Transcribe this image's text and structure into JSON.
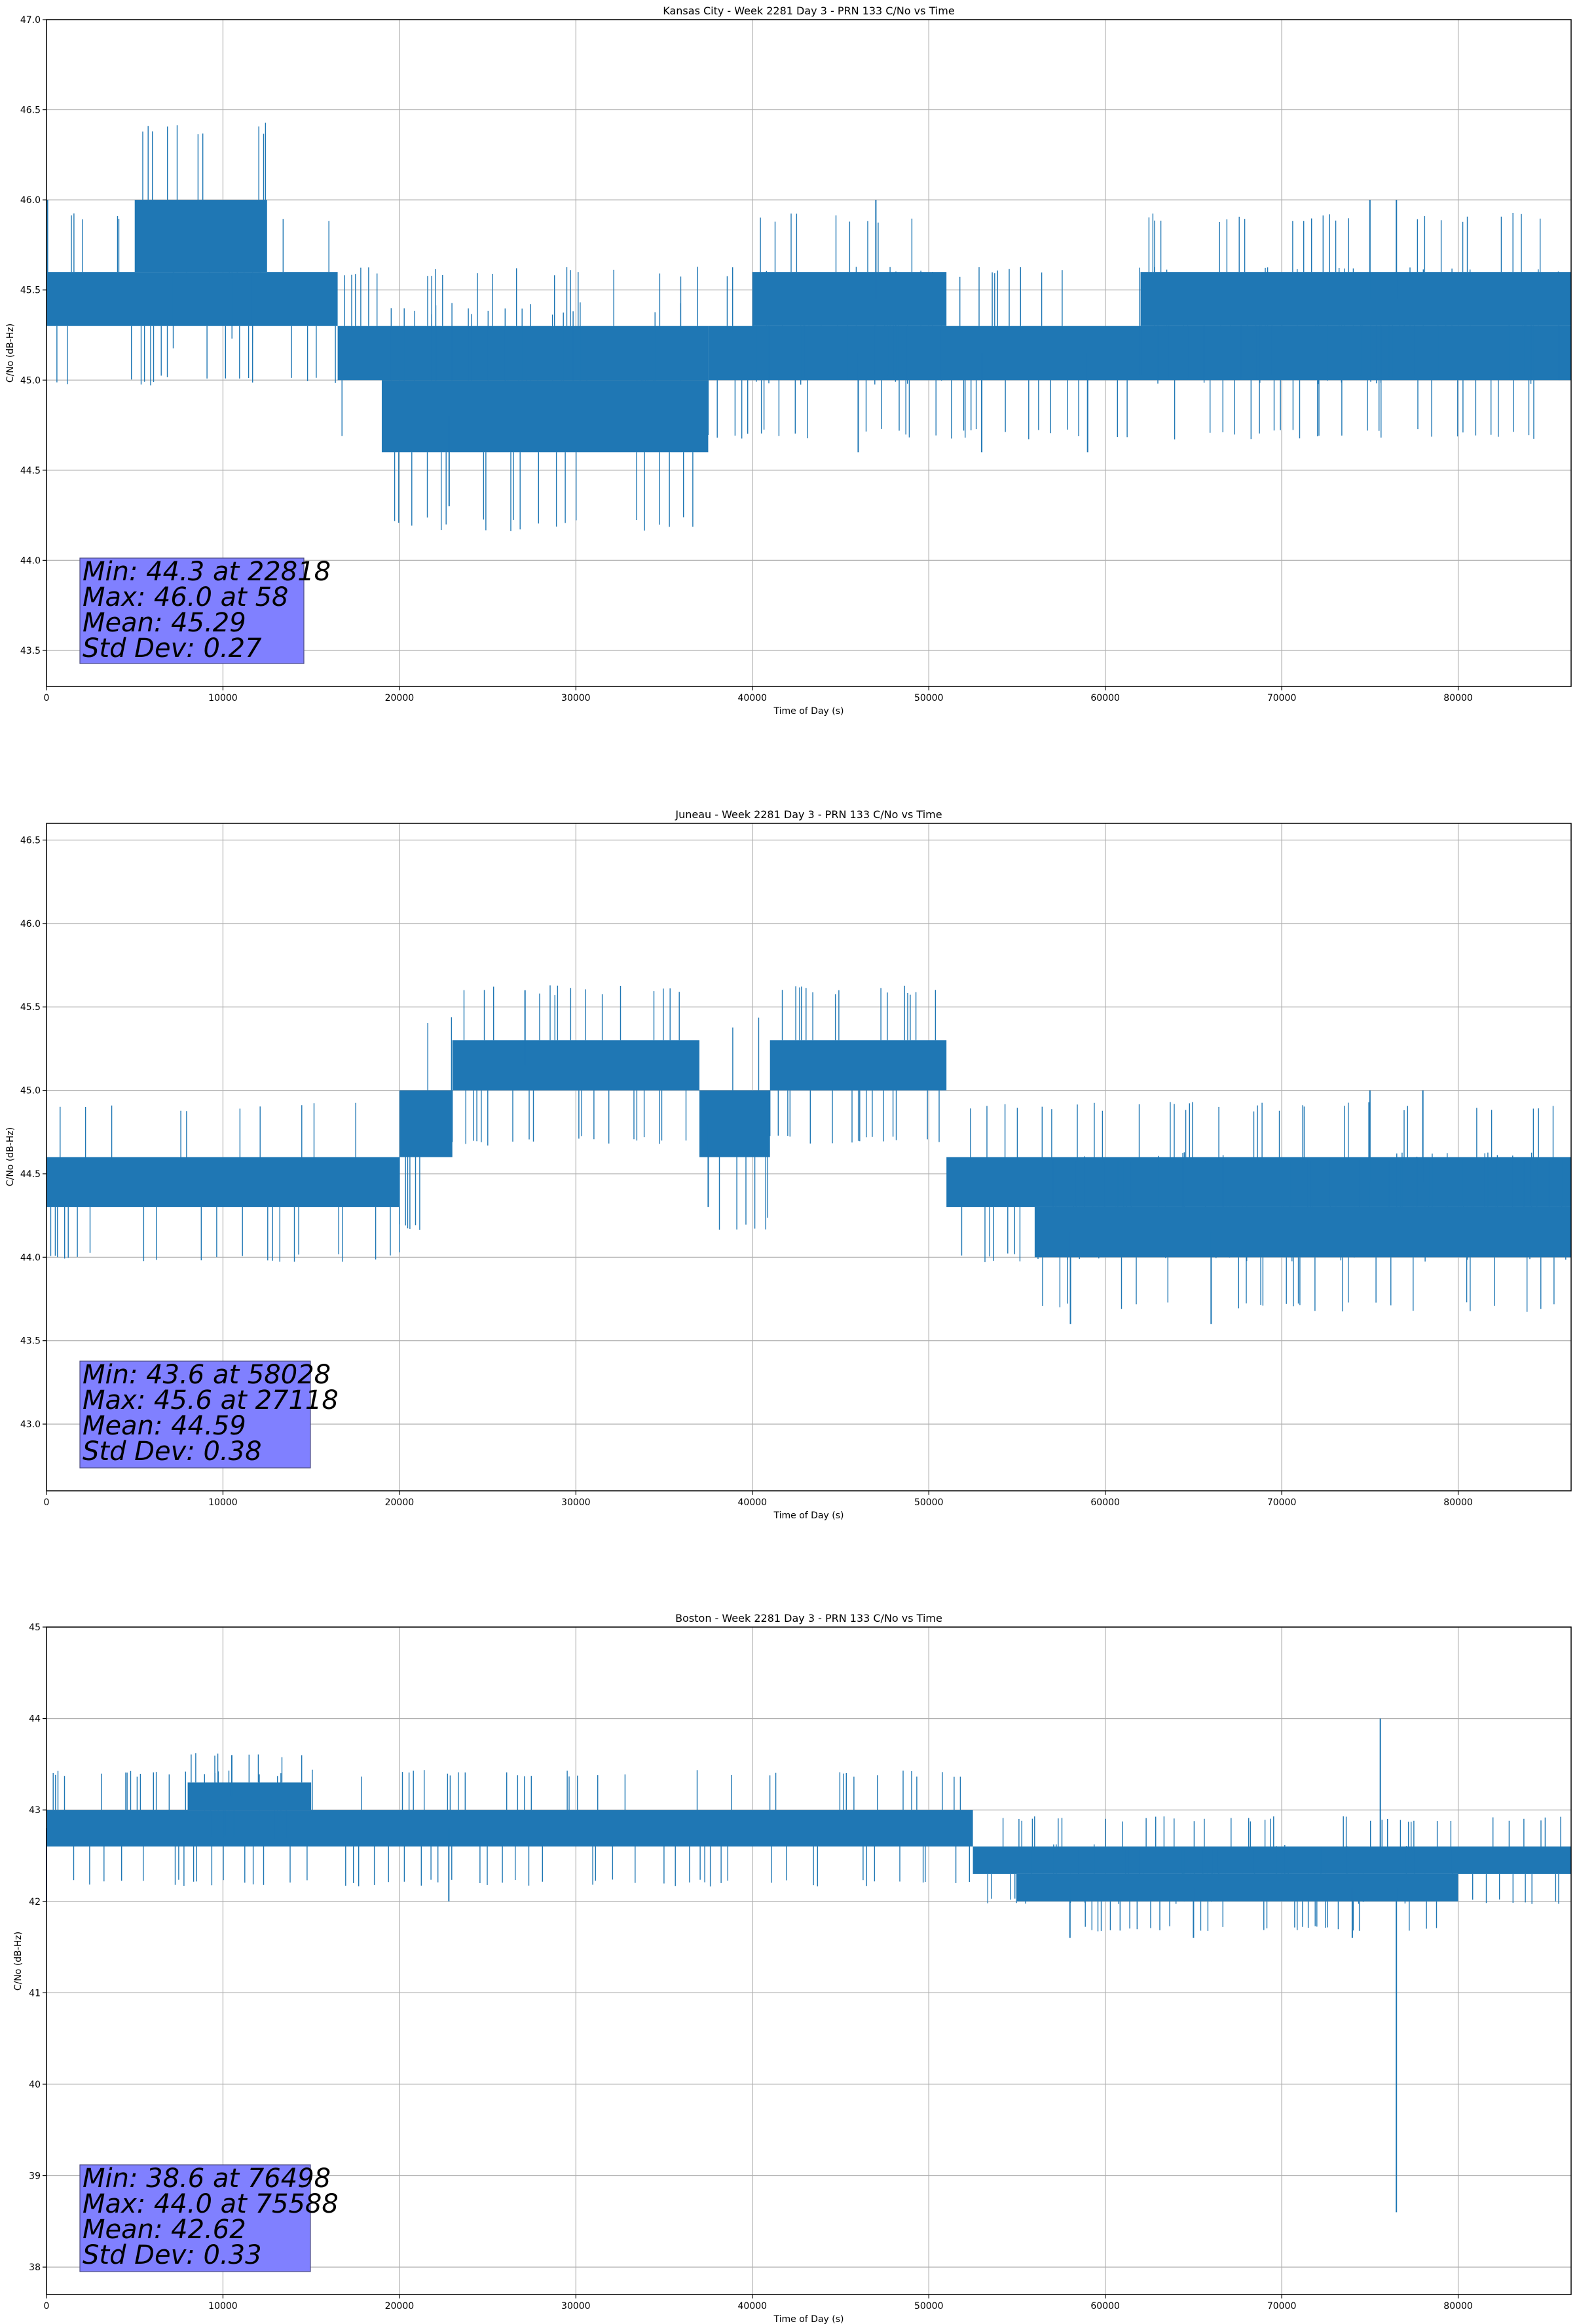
{
  "chart_data": [
    {
      "type": "line",
      "title": "Kansas City - Week 2281 Day 3 - PRN 133 C/No vs Time",
      "xlabel": "Time of Day (s)",
      "ylabel": "C/No (dB-Hz)",
      "xlim": [
        0,
        86400
      ],
      "ylim": [
        43.3,
        47.0
      ],
      "xticks": [
        0,
        10000,
        20000,
        30000,
        40000,
        50000,
        60000,
        70000,
        80000
      ],
      "xtick_labels": [
        "0",
        "10000",
        "20000",
        "30000",
        "40000",
        "50000",
        "60000",
        "70000",
        "80000"
      ],
      "yticks": [
        43.5,
        44.0,
        44.5,
        45.0,
        45.5,
        46.0,
        46.5,
        47.0
      ],
      "ytick_labels": [
        "43.5",
        "44.0",
        "44.5",
        "45.0",
        "45.5",
        "46.0",
        "46.5",
        "47.0"
      ],
      "grid": true,
      "color": "#1f77b4",
      "segments": [
        {
          "x": [
            0,
            16500
          ],
          "band": [
            45.3,
            45.6
          ]
        },
        {
          "x": [
            5000,
            12500
          ],
          "band": [
            45.6,
            46.0
          ]
        },
        {
          "x": [
            16500,
            37500
          ],
          "band": [
            45.0,
            45.3
          ]
        },
        {
          "x": [
            19000,
            37500
          ],
          "band": [
            44.6,
            45.0
          ]
        },
        {
          "x": [
            37500,
            86400
          ],
          "band": [
            45.0,
            45.3
          ]
        },
        {
          "x": [
            40000,
            51000
          ],
          "band": [
            45.3,
            45.6
          ]
        },
        {
          "x": [
            62000,
            86400
          ],
          "band": [
            45.3,
            45.6
          ]
        }
      ],
      "spikes": [
        [
          22818,
          44.3
        ],
        [
          58,
          46.0
        ],
        [
          47000,
          46.0
        ],
        [
          75000,
          46.0
        ],
        [
          46000,
          44.6
        ],
        [
          53000,
          44.6
        ],
        [
          59000,
          44.6
        ],
        [
          76500,
          46.0
        ]
      ],
      "stats": {
        "min": "Min: 44.3 at 22818",
        "max": "Max: 46.0 at 58",
        "mean": "Mean: 45.29",
        "std": "Std Dev: 0.27"
      }
    },
    {
      "type": "line",
      "title": "Juneau - Week 2281 Day 3 - PRN 133 C/No vs Time",
      "xlabel": "Time of Day (s)",
      "ylabel": "C/No (dB-Hz)",
      "xlim": [
        0,
        86400
      ],
      "ylim": [
        42.6,
        46.6
      ],
      "xticks": [
        0,
        10000,
        20000,
        30000,
        40000,
        50000,
        60000,
        70000,
        80000
      ],
      "xtick_labels": [
        "0",
        "10000",
        "20000",
        "30000",
        "40000",
        "50000",
        "60000",
        "70000",
        "80000"
      ],
      "yticks": [
        43.0,
        43.5,
        44.0,
        44.5,
        45.0,
        45.5,
        46.0,
        46.5
      ],
      "ytick_labels": [
        "43.0",
        "43.5",
        "44.0",
        "44.5",
        "45.0",
        "45.5",
        "46.0",
        "46.5"
      ],
      "grid": true,
      "color": "#1f77b4",
      "segments": [
        {
          "x": [
            0,
            20000
          ],
          "band": [
            44.3,
            44.6
          ]
        },
        {
          "x": [
            20000,
            23000
          ],
          "band": [
            44.6,
            45.0
          ]
        },
        {
          "x": [
            23000,
            37000
          ],
          "band": [
            45.0,
            45.3
          ]
        },
        {
          "x": [
            37000,
            41000
          ],
          "band": [
            44.6,
            45.0
          ]
        },
        {
          "x": [
            41000,
            51000
          ],
          "band": [
            45.0,
            45.3
          ]
        },
        {
          "x": [
            51000,
            86400
          ],
          "band": [
            44.3,
            44.6
          ]
        },
        {
          "x": [
            56000,
            86400
          ],
          "band": [
            44.0,
            44.3
          ]
        }
      ],
      "spikes": [
        [
          27118,
          45.6
        ],
        [
          58028,
          43.6
        ],
        [
          66000,
          43.6
        ],
        [
          75000,
          45.0
        ],
        [
          78000,
          45.0
        ],
        [
          37500,
          44.3
        ]
      ],
      "stats": {
        "min": "Min: 43.6 at 58028",
        "max": "Max: 45.6 at 27118",
        "mean": "Mean: 44.59",
        "std": "Std Dev: 0.38"
      }
    },
    {
      "type": "line",
      "title": "Boston - Week 2281 Day 3 - PRN 133 C/No vs Time",
      "xlabel": "Time of Day (s)",
      "ylabel": "C/No (dB-Hz)",
      "xlim": [
        0,
        86400
      ],
      "ylim": [
        37.7,
        45.0
      ],
      "xticks": [
        0,
        10000,
        20000,
        30000,
        40000,
        50000,
        60000,
        70000,
        80000
      ],
      "xtick_labels": [
        "0",
        "10000",
        "20000",
        "30000",
        "40000",
        "50000",
        "60000",
        "70000",
        "80000"
      ],
      "yticks": [
        38,
        39,
        40,
        41,
        42,
        43,
        44,
        45
      ],
      "ytick_labels": [
        "38",
        "39",
        "40",
        "41",
        "42",
        "43",
        "44",
        "45"
      ],
      "grid": true,
      "color": "#1f77b4",
      "segments": [
        {
          "x": [
            0,
            52500
          ],
          "band": [
            42.6,
            43.0
          ]
        },
        {
          "x": [
            8000,
            15000
          ],
          "band": [
            43.0,
            43.3
          ]
        },
        {
          "x": [
            52500,
            86400
          ],
          "band": [
            42.3,
            42.6
          ]
        },
        {
          "x": [
            55000,
            80000
          ],
          "band": [
            42.0,
            42.3
          ]
        }
      ],
      "spikes": [
        [
          75588,
          44.0
        ],
        [
          76498,
          38.6
        ],
        [
          10500,
          43.6
        ],
        [
          0,
          42.0
        ],
        [
          22800,
          42.0
        ],
        [
          58000,
          41.6
        ],
        [
          65000,
          41.6
        ],
        [
          74000,
          41.6
        ]
      ],
      "stats": {
        "min": "Min: 38.6 at 76498",
        "max": "Max: 44.0 at 75588",
        "mean": "Mean: 42.62",
        "std": "Std Dev: 0.33"
      }
    }
  ]
}
